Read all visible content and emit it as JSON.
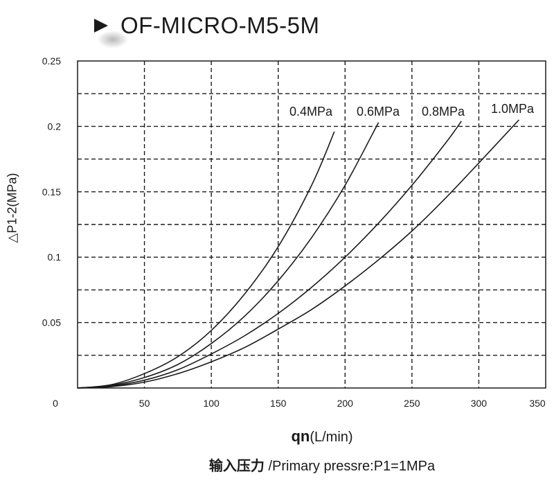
{
  "title": "OF-MICRO-M5-5M",
  "chart_data": {
    "type": "line",
    "xlabel_main": "qn",
    "xlabel_unit": "(L/min)",
    "ylabel": "△P1-2(MPa)",
    "footnote_zh": "输入压力",
    "footnote_en": " /Primary pressre:P1=1MPa",
    "xlim": [
      0,
      350
    ],
    "ylim": [
      0,
      0.25
    ],
    "x_ticks": [
      0,
      50,
      100,
      150,
      200,
      250,
      300,
      350
    ],
    "y_ticks": [
      0.05,
      0.1,
      0.15,
      0.2,
      0.25
    ],
    "y_tick_labels": [
      "0.05",
      "0.1",
      "0.15",
      "0.2",
      "0.25"
    ],
    "grid": true,
    "grid_style": "dashed",
    "line_color": "#1a1a1a",
    "series": [
      {
        "name": "0.4MPa",
        "x": [
          0,
          25,
          50,
          75,
          100,
          125,
          150,
          175,
          192
        ],
        "y": [
          0,
          0.0025,
          0.011,
          0.024,
          0.044,
          0.072,
          0.108,
          0.155,
          0.196
        ]
      },
      {
        "name": "0.6MPa",
        "x": [
          0,
          25,
          50,
          75,
          100,
          125,
          150,
          175,
          200,
          225
        ],
        "y": [
          0,
          0.002,
          0.008,
          0.018,
          0.034,
          0.055,
          0.082,
          0.115,
          0.155,
          0.203
        ]
      },
      {
        "name": "0.8MPa",
        "x": [
          0,
          25,
          50,
          75,
          100,
          125,
          150,
          175,
          200,
          225,
          250,
          275,
          287
        ],
        "y": [
          0,
          0.0015,
          0.006,
          0.014,
          0.026,
          0.04,
          0.057,
          0.077,
          0.1,
          0.126,
          0.155,
          0.187,
          0.204
        ]
      },
      {
        "name": "1.0MPa",
        "x": [
          0,
          25,
          50,
          75,
          100,
          125,
          150,
          175,
          200,
          225,
          250,
          275,
          300,
          330
        ],
        "y": [
          0,
          0.001,
          0.0045,
          0.011,
          0.02,
          0.031,
          0.045,
          0.06,
          0.078,
          0.098,
          0.12,
          0.145,
          0.172,
          0.205
        ]
      }
    ]
  }
}
